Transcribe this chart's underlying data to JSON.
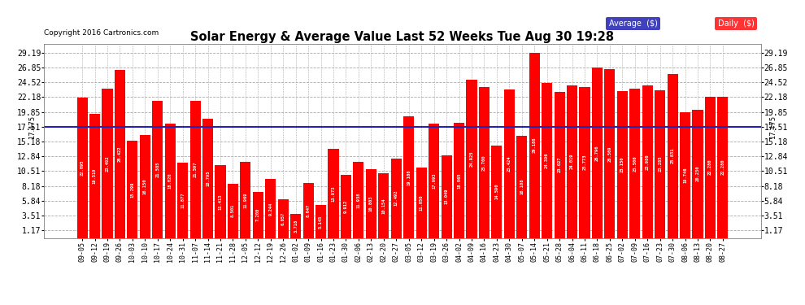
{
  "title": "Solar Energy & Average Value Last 52 Weeks Tue Aug 30 19:28",
  "copyright": "Copyright 2016 Cartronics.com",
  "average_value": 17.475,
  "bar_color": "#ff0000",
  "avg_line_color": "#2222bb",
  "background_color": "#ffffff",
  "yticks": [
    1.17,
    3.51,
    5.84,
    8.18,
    10.51,
    12.84,
    15.18,
    17.51,
    19.85,
    22.18,
    24.52,
    26.85,
    29.19
  ],
  "ylim": [
    0.0,
    30.5
  ],
  "categories": [
    "09-05",
    "09-12",
    "09-19",
    "09-26",
    "10-03",
    "10-10",
    "10-17",
    "10-24",
    "10-31",
    "11-07",
    "11-14",
    "11-21",
    "11-28",
    "12-05",
    "12-12",
    "12-19",
    "12-26",
    "01-02",
    "01-09",
    "01-16",
    "01-23",
    "01-30",
    "02-06",
    "02-13",
    "02-20",
    "02-27",
    "03-05",
    "03-12",
    "03-19",
    "03-26",
    "04-02",
    "04-09",
    "04-16",
    "04-23",
    "04-30",
    "05-07",
    "05-14",
    "05-21",
    "05-28",
    "06-04",
    "06-11",
    "06-18",
    "06-25",
    "07-02",
    "07-09",
    "07-16",
    "07-23",
    "07-30",
    "08-06",
    "08-13",
    "08-20",
    "08-27"
  ],
  "values": [
    22.095,
    19.519,
    23.492,
    26.422,
    15.299,
    16.15,
    21.585,
    18.02,
    11.877,
    21.597,
    18.795,
    11.413,
    8.501,
    11.969,
    7.208,
    9.244,
    6.057,
    3.718,
    8.647,
    5.145,
    13.973,
    9.912,
    11.938,
    10.803,
    10.154,
    12.492,
    19.108,
    11.05,
    17.993,
    13.049,
    18.065,
    24.925,
    23.7,
    14.59,
    23.424,
    16.108,
    29.188,
    24.396,
    23.027,
    24.019,
    23.773,
    26.796,
    26.569,
    23.15,
    23.5,
    23.98,
    23.285,
    25.831,
    19.746,
    20.23,
    22.28,
    22.28
  ]
}
